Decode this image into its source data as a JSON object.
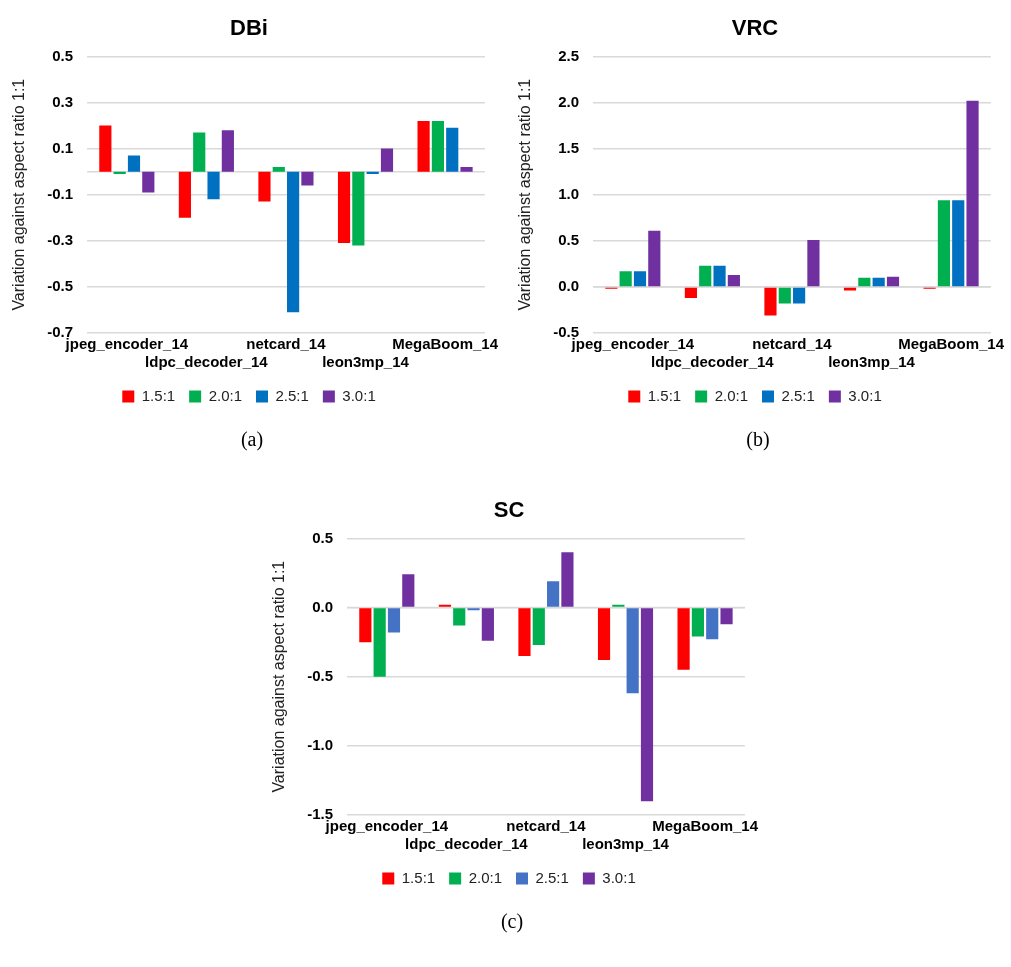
{
  "chart_data": [
    {
      "type": "bar",
      "title": "DBi",
      "ylabel": "Variation against aspect ratio 1:1",
      "categories": [
        "jpeg_encoder_14",
        "ldpc_decoder_14",
        "netcard_14",
        "leon3mp_14",
        "MegaBoom_14"
      ],
      "series": [
        {
          "name": "1.5:1",
          "color": "#ff0000",
          "values": [
            0.2,
            -0.2,
            -0.13,
            -0.31,
            0.22
          ]
        },
        {
          "name": "2.0:1",
          "color": "#00b050",
          "values": [
            -0.01,
            0.17,
            0.02,
            -0.32,
            0.22
          ]
        },
        {
          "name": "2.5:1",
          "color": "#0070c0",
          "values": [
            0.07,
            -0.12,
            -0.61,
            -0.01,
            0.19
          ]
        },
        {
          "name": "3.0:1",
          "color": "#7030a0",
          "values": [
            -0.09,
            0.18,
            -0.06,
            0.1,
            0.02
          ]
        }
      ],
      "ylim": [
        -0.7,
        0.5
      ],
      "yticks": [
        -0.7,
        -0.5,
        -0.3,
        -0.1,
        0.1,
        0.3,
        0.5
      ],
      "grid": "y",
      "legend": "bottom",
      "annotations": [
        "(a)"
      ]
    },
    {
      "type": "bar",
      "title": "VRC",
      "ylabel": "Variation against aspect ratio 1:1",
      "categories": [
        "jpeg_encoder_14",
        "ldpc_decoder_14",
        "netcard_14",
        "leon3mp_14",
        "MegaBoom_14"
      ],
      "series": [
        {
          "name": "1.5:1",
          "color": "#ff0000",
          "values": [
            -0.02,
            -0.12,
            -0.31,
            -0.04,
            -0.02
          ]
        },
        {
          "name": "2.0:1",
          "color": "#00b050",
          "values": [
            0.17,
            0.23,
            -0.18,
            0.1,
            0.94
          ]
        },
        {
          "name": "2.5:1",
          "color": "#0070c0",
          "values": [
            0.17,
            0.23,
            -0.18,
            0.1,
            0.94
          ]
        },
        {
          "name": "3.0:1",
          "color": "#7030a0",
          "values": [
            0.61,
            0.13,
            0.51,
            0.11,
            2.02
          ]
        }
      ],
      "ylim": [
        -0.5,
        2.5
      ],
      "yticks": [
        -0.5,
        {
          "value": 0,
          "label": "0.0"
        },
        0.5,
        {
          "value": 1,
          "label": "1.0"
        },
        1.5,
        {
          "value": 2,
          "label": "2.0"
        },
        2.5
      ],
      "grid": "y",
      "legend": "bottom",
      "annotations": [
        "(b)"
      ]
    },
    {
      "type": "bar",
      "title": "SC",
      "ylabel": "Variation against aspect ratio 1:1",
      "categories": [
        "jpeg_encoder_14",
        "ldpc_decoder_14",
        "netcard_14",
        "leon3mp_14",
        "MegaBoom_14"
      ],
      "series": [
        {
          "name": "1.5:1",
          "color": "#ff0000",
          "values": [
            -0.25,
            0.02,
            -0.35,
            -0.38,
            -0.45
          ]
        },
        {
          "name": "2.0:1",
          "color": "#00b050",
          "values": [
            -0.5,
            -0.13,
            -0.27,
            0.02,
            -0.21
          ]
        },
        {
          "name": "2.5:1",
          "color": "#4472c4",
          "values": [
            -0.18,
            -0.02,
            0.19,
            -0.62,
            -0.23
          ]
        },
        {
          "name": "3.0:1",
          "color": "#7030a0",
          "values": [
            0.24,
            -0.24,
            0.4,
            -1.4,
            -0.12
          ]
        }
      ],
      "ylim": [
        -1.5,
        0.5
      ],
      "yticks": [
        -1.5,
        {
          "value": -1,
          "label": "-1.0"
        },
        -0.5,
        {
          "value": 0,
          "label": "0.0"
        },
        0.5
      ],
      "grid": "y",
      "legend": "bottom",
      "annotations": [
        "(c)"
      ]
    }
  ]
}
